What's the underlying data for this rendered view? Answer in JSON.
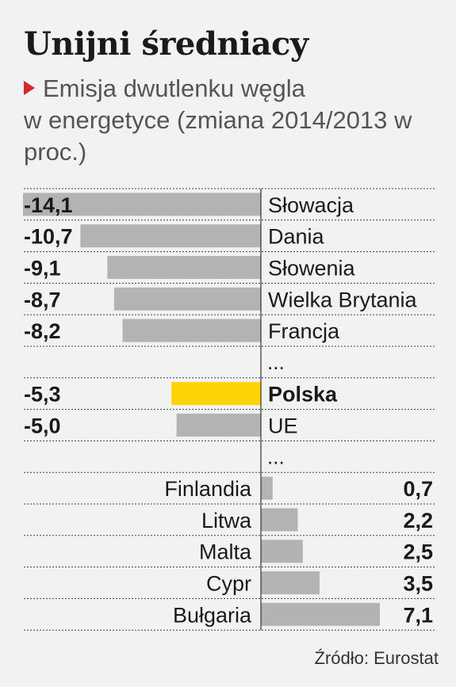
{
  "title": "Unijni średniacy",
  "subtitle_line1": "Emisja dwutlenku węgla",
  "subtitle_rest": "w energetyce (zmiana 2014/2013 w proc.)",
  "source": "Źródło: Eurostat",
  "colors": {
    "bar": "#b3b3b3",
    "highlight": "#ffd400",
    "text": "#1a1a1a",
    "marker": "#d9262c"
  },
  "chart_data": {
    "type": "bar",
    "orientation": "horizontal",
    "axis": "diverging around 0",
    "rows": [
      {
        "label": "Słowacja",
        "value": -14.1,
        "display": "-14,1"
      },
      {
        "label": "Dania",
        "value": -10.7,
        "display": "-10,7"
      },
      {
        "label": "Słowenia",
        "value": -9.1,
        "display": "-9,1"
      },
      {
        "label": "Wielka Brytania",
        "value": -8.7,
        "display": "-8,7"
      },
      {
        "label": "Francja",
        "value": -8.2,
        "display": "-8,2"
      },
      {
        "ellipsis": "..."
      },
      {
        "label": "Polska",
        "value": -5.3,
        "display": "-5,3",
        "highlight": true
      },
      {
        "label": "UE",
        "value": -5.0,
        "display": "-5,0"
      },
      {
        "ellipsis": "..."
      },
      {
        "label": "Finlandia",
        "value": 0.7,
        "display": "0,7"
      },
      {
        "label": "Litwa",
        "value": 2.2,
        "display": "2,2"
      },
      {
        "label": "Malta",
        "value": 2.5,
        "display": "2,5"
      },
      {
        "label": "Cypr",
        "value": 3.5,
        "display": "3,5"
      },
      {
        "label": "Bułgaria",
        "value": 7.1,
        "display": "7,1"
      }
    ]
  }
}
